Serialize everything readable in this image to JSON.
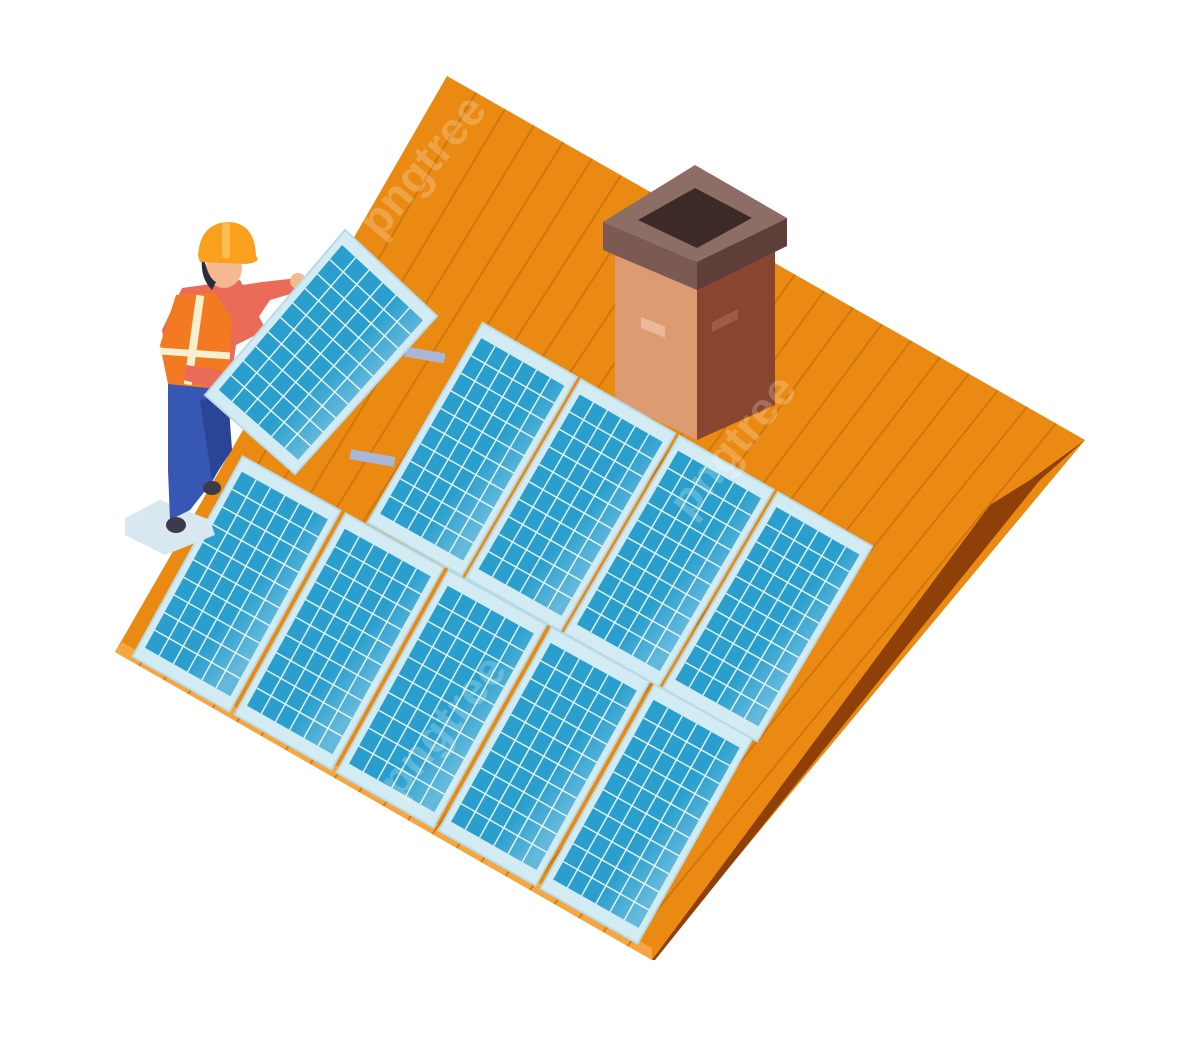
{
  "illustration": {
    "subject": "solar-panel-installation",
    "watermark_text": "pngtree",
    "colors": {
      "background": "#ffffff",
      "roof_face": "#ea8a12",
      "roof_plank_line": "#c9700a",
      "roof_edge_left": "#f6a640",
      "roof_edge_right": "#8f3f08",
      "roof_gable": "#b85a0c",
      "chimney_front": "#dd9b72",
      "chimney_side": "#8a4530",
      "chimney_cap": "#6f5048",
      "chimney_cap_top": "#8d6e66",
      "panel_frame": "#d3ecf4",
      "panel_cell": "#2a9fce",
      "panel_grid": "#e9f7fc",
      "panel_shine": "#7fd3ec",
      "worker_helmet": "#f9a11c",
      "worker_vest": "#f47a22",
      "worker_vest_stripe": "#f5f0d0",
      "worker_shirt": "#ea6b57",
      "worker_pants": "#3657b3",
      "worker_skin": "#f4b98e",
      "worker_boots": "#3b3b4a",
      "platform": "#d9e8f0"
    }
  }
}
